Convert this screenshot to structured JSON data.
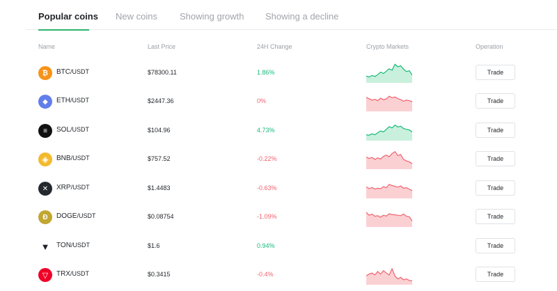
{
  "tabs": [
    {
      "label": "Popular coins",
      "active": true
    },
    {
      "label": "New coins",
      "active": false
    },
    {
      "label": "Showing growth",
      "active": false
    },
    {
      "label": "Showing a decline",
      "active": false
    }
  ],
  "columns": {
    "name": "Name",
    "last_price": "Last Price",
    "change": "24H Change",
    "markets": "Crypto Markets",
    "operation": "Operation"
  },
  "colors": {
    "accent": "#2bb36b",
    "up": "#16b979",
    "down": "#f0616d"
  },
  "rows": [
    {
      "base": "BTC",
      "quote": "/USDT",
      "price": "$78300.11",
      "change": "1.86%",
      "direction": "up",
      "icon": "bitcoin-icon",
      "icon_color": "#f7931a",
      "trade": "Trade",
      "spark": [
        0.35,
        0.3,
        0.38,
        0.33,
        0.42,
        0.55,
        0.48,
        0.6,
        0.72,
        0.65,
        0.95,
        0.82,
        0.88,
        0.7,
        0.58,
        0.62,
        0.4
      ]
    },
    {
      "base": "ETH",
      "quote": "/USDT",
      "price": "$2447.36",
      "change": "0%",
      "direction": "down",
      "icon": "ethereum-icon",
      "icon_color": "#627eea",
      "trade": "Trade",
      "spark": [
        0.72,
        0.65,
        0.58,
        0.62,
        0.55,
        0.68,
        0.6,
        0.64,
        0.78,
        0.7,
        0.74,
        0.66,
        0.6,
        0.52,
        0.58,
        0.55,
        0.5
      ]
    },
    {
      "base": "SOL",
      "quote": "/USDT",
      "price": "$104.96",
      "change": "4.73%",
      "direction": "up",
      "icon": "solana-icon",
      "icon_color": "#111111",
      "trade": "Trade",
      "spark": [
        0.3,
        0.28,
        0.35,
        0.3,
        0.4,
        0.5,
        0.45,
        0.58,
        0.72,
        0.65,
        0.8,
        0.7,
        0.74,
        0.62,
        0.58,
        0.55,
        0.45
      ]
    },
    {
      "base": "BNB",
      "quote": "/USDT",
      "price": "$757.52",
      "change": "-0.22%",
      "direction": "down",
      "icon": "bnb-icon",
      "icon_color": "#f3ba2f",
      "trade": "Trade",
      "spark": [
        0.62,
        0.55,
        0.6,
        0.5,
        0.58,
        0.52,
        0.66,
        0.72,
        0.64,
        0.8,
        0.9,
        0.7,
        0.75,
        0.5,
        0.42,
        0.38,
        0.28
      ]
    },
    {
      "base": "XRP",
      "quote": "/USDT",
      "price": "$1.4483",
      "change": "-0.63%",
      "direction": "down",
      "icon": "xrp-icon",
      "icon_color": "#23292f",
      "trade": "Trade",
      "spark": [
        0.6,
        0.5,
        0.56,
        0.48,
        0.52,
        0.5,
        0.6,
        0.55,
        0.72,
        0.66,
        0.62,
        0.58,
        0.64,
        0.52,
        0.55,
        0.48,
        0.4
      ]
    },
    {
      "base": "DOGE",
      "quote": "/USDT",
      "price": "$0.08754",
      "change": "-1.09%",
      "direction": "down",
      "icon": "dogecoin-icon",
      "icon_color": "#c2a633",
      "trade": "Trade",
      "spark": [
        0.75,
        0.6,
        0.66,
        0.55,
        0.58,
        0.5,
        0.6,
        0.56,
        0.68,
        0.64,
        0.62,
        0.6,
        0.58,
        0.66,
        0.55,
        0.52,
        0.3
      ]
    },
    {
      "base": "TON",
      "quote": "/USDT",
      "price": "$1.6",
      "change": "0.94%",
      "direction": "up",
      "icon": "ton-icon",
      "icon_color": "#1f2328",
      "trade": "Trade",
      "spark": []
    },
    {
      "base": "TRX",
      "quote": "/USDT",
      "price": "$0.3415",
      "change": "-0.4%",
      "direction": "down",
      "icon": "tron-icon",
      "icon_color": "#ef0027",
      "trade": "Trade",
      "spark": [
        0.45,
        0.55,
        0.6,
        0.5,
        0.68,
        0.55,
        0.72,
        0.6,
        0.5,
        0.82,
        0.45,
        0.3,
        0.38,
        0.25,
        0.3,
        0.22,
        0.2
      ]
    }
  ]
}
